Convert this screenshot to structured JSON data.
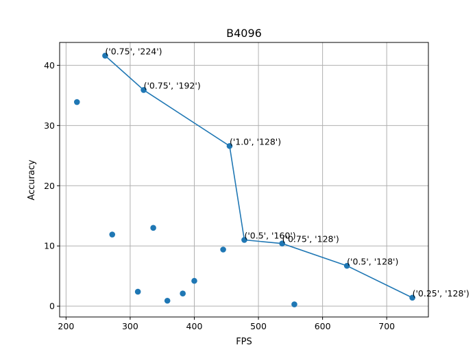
{
  "chart_data": {
    "type": "scatter",
    "title": "B4096",
    "xlabel": "FPS",
    "ylabel": "Accuracy",
    "xlim": [
      190,
      765
    ],
    "ylim": [
      -1.8,
      43.8
    ],
    "xticks": [
      200,
      300,
      400,
      500,
      600,
      700
    ],
    "yticks": [
      0,
      10,
      20,
      30,
      40
    ],
    "grid": true,
    "color": "#1f77b4",
    "scatter_points": [
      {
        "x": 217,
        "y": 33.9
      },
      {
        "x": 272,
        "y": 11.9
      },
      {
        "x": 312,
        "y": 2.4
      },
      {
        "x": 336,
        "y": 13.0
      },
      {
        "x": 358,
        "y": 0.9
      },
      {
        "x": 382,
        "y": 2.1
      },
      {
        "x": 400,
        "y": 4.2
      },
      {
        "x": 445,
        "y": 9.4
      },
      {
        "x": 556,
        "y": 0.3
      }
    ],
    "frontier": [
      {
        "x": 261,
        "y": 41.6,
        "label": "('0.75', '224')"
      },
      {
        "x": 321,
        "y": 35.9,
        "label": "('0.75', '192')"
      },
      {
        "x": 455,
        "y": 26.6,
        "label": "('1.0', '128')"
      },
      {
        "x": 478,
        "y": 11.0,
        "label": "('0.5', '160')"
      },
      {
        "x": 537,
        "y": 10.4,
        "label": "('0.75', '128')"
      },
      {
        "x": 638,
        "y": 6.7,
        "label": "('0.5', '128')"
      },
      {
        "x": 740,
        "y": 1.4,
        "label": "('0.25', '128')"
      }
    ]
  }
}
